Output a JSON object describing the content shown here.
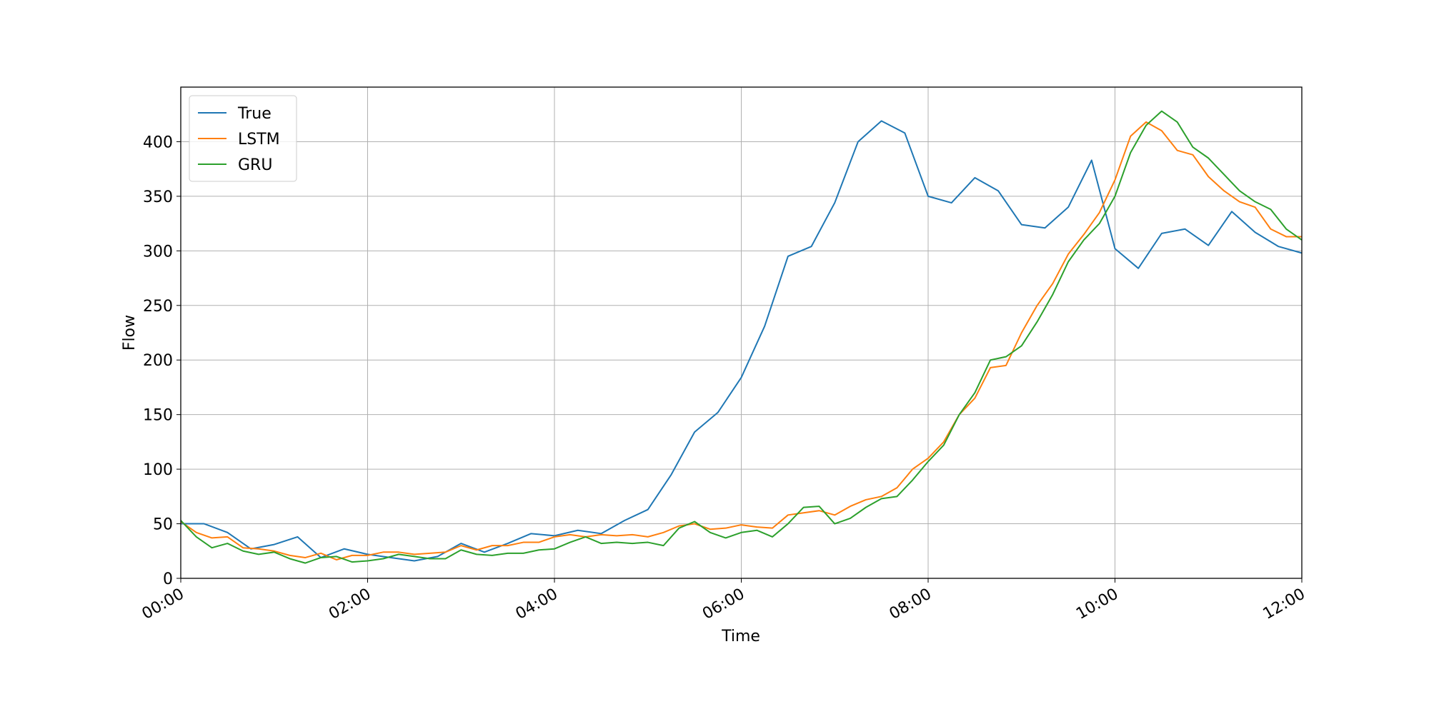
{
  "chart_data": {
    "type": "line",
    "x_label": "Time",
    "y_label": "Flow",
    "xlim": [
      0,
      12
    ],
    "ylim": [
      0,
      450
    ],
    "xticks": [
      {
        "value": 0,
        "label": "00:00"
      },
      {
        "value": 2,
        "label": "02:00"
      },
      {
        "value": 4,
        "label": "04:00"
      },
      {
        "value": 6,
        "label": "06:00"
      },
      {
        "value": 8,
        "label": "08:00"
      },
      {
        "value": 10,
        "label": "10:00"
      },
      {
        "value": 12,
        "label": "12:00"
      }
    ],
    "yticks": [
      0,
      50,
      100,
      150,
      200,
      250,
      300,
      350,
      400
    ],
    "grid": true,
    "legend": "upper left",
    "series": [
      {
        "name": "True",
        "color": "#1f77b4",
        "x": [
          0,
          0.25,
          0.5,
          0.75,
          1,
          1.25,
          1.5,
          1.75,
          2,
          2.25,
          2.5,
          2.75,
          3,
          3.25,
          3.5,
          3.75,
          4,
          4.25,
          4.5,
          4.75,
          5,
          5.25,
          5.5,
          5.75,
          6,
          6.25,
          6.5,
          6.75,
          7,
          7.25,
          7.5,
          7.75,
          8,
          8.25,
          8.5,
          8.75,
          9,
          9.25,
          9.5,
          9.75,
          10,
          10.25,
          10.5,
          10.75,
          11,
          11.25,
          11.5,
          11.75,
          12
        ],
        "values": [
          50,
          50,
          42,
          27,
          31,
          38,
          19,
          27,
          22,
          19,
          16,
          20,
          32,
          24,
          32,
          41,
          39,
          44,
          41,
          53,
          63,
          95,
          134,
          152,
          184,
          231,
          295,
          304,
          344,
          400,
          419,
          408,
          350,
          344,
          367,
          355,
          324,
          321,
          340,
          383,
          302,
          284,
          316,
          320,
          305,
          336,
          317,
          304,
          298
        ]
      },
      {
        "name": "LSTM",
        "color": "#ff7f0e",
        "x": [
          0,
          0.1667,
          0.3333,
          0.5,
          0.6667,
          0.8333,
          1,
          1.1667,
          1.3333,
          1.5,
          1.6667,
          1.8333,
          2,
          2.1667,
          2.3333,
          2.5,
          2.6667,
          2.8333,
          3,
          3.1667,
          3.3333,
          3.5,
          3.6667,
          3.8333,
          4,
          4.1667,
          4.3333,
          4.5,
          4.6667,
          4.8333,
          5,
          5.1667,
          5.3333,
          5.5,
          5.6667,
          5.8333,
          6,
          6.1667,
          6.3333,
          6.5,
          6.6667,
          6.8333,
          7,
          7.1667,
          7.3333,
          7.5,
          7.6667,
          7.8333,
          8,
          8.1667,
          8.3333,
          8.5,
          8.6667,
          8.8333,
          9,
          9.1667,
          9.3333,
          9.5,
          9.6667,
          9.8333,
          10,
          10.1667,
          10.3333,
          10.5,
          10.6667,
          10.8333,
          11,
          11.1667,
          11.3333,
          11.5,
          11.6667,
          11.8333,
          12
        ],
        "values": [
          52,
          42,
          37,
          38,
          28,
          27,
          25,
          21,
          19,
          23,
          17,
          21,
          21,
          24,
          24,
          22,
          23,
          24,
          30,
          26,
          30,
          30,
          33,
          33,
          38,
          40,
          38,
          40,
          39,
          40,
          38,
          42,
          48,
          50,
          45,
          46,
          49,
          47,
          46,
          58,
          60,
          62,
          58,
          66,
          72,
          75,
          83,
          100,
          110,
          125,
          150,
          165,
          193,
          195,
          225,
          250,
          270,
          297,
          315,
          335,
          365,
          405,
          418,
          410,
          392,
          388,
          368,
          355,
          345,
          340,
          320,
          313,
          313
        ]
      },
      {
        "name": "GRU",
        "color": "#2ca02c",
        "x": [
          0,
          0.1667,
          0.3333,
          0.5,
          0.6667,
          0.8333,
          1,
          1.1667,
          1.3333,
          1.5,
          1.6667,
          1.8333,
          2,
          2.1667,
          2.3333,
          2.5,
          2.6667,
          2.8333,
          3,
          3.1667,
          3.3333,
          3.5,
          3.6667,
          3.8333,
          4,
          4.1667,
          4.3333,
          4.5,
          4.6667,
          4.8333,
          5,
          5.1667,
          5.3333,
          5.5,
          5.6667,
          5.8333,
          6,
          6.1667,
          6.3333,
          6.5,
          6.6667,
          6.8333,
          7,
          7.1667,
          7.3333,
          7.5,
          7.6667,
          7.8333,
          8,
          8.1667,
          8.3333,
          8.5,
          8.6667,
          8.8333,
          9,
          9.1667,
          9.3333,
          9.5,
          9.6667,
          9.8333,
          10,
          10.1667,
          10.3333,
          10.5,
          10.6667,
          10.8333,
          11,
          11.1667,
          11.3333,
          11.5,
          11.6667,
          11.8333,
          12
        ],
        "values": [
          53,
          38,
          28,
          32,
          25,
          22,
          24,
          18,
          14,
          19,
          20,
          15,
          16,
          18,
          22,
          20,
          18,
          18,
          26,
          22,
          21,
          23,
          23,
          26,
          27,
          33,
          38,
          32,
          33,
          32,
          33,
          30,
          46,
          52,
          42,
          37,
          42,
          44,
          38,
          50,
          65,
          66,
          50,
          55,
          65,
          73,
          75,
          90,
          107,
          122,
          150,
          170,
          200,
          203,
          213,
          235,
          260,
          290,
          310,
          325,
          350,
          390,
          415,
          428,
          418,
          395,
          385,
          370,
          355,
          345,
          338,
          320,
          310
        ]
      }
    ]
  }
}
